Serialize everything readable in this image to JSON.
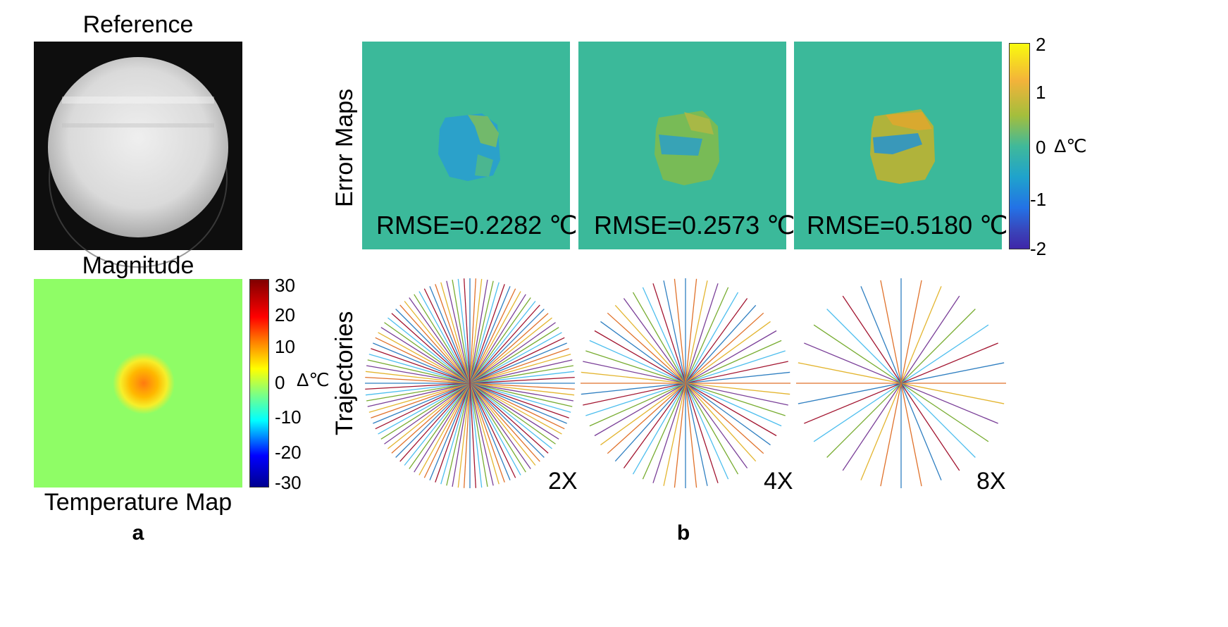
{
  "panel_a": {
    "reference_title": "Reference",
    "magnitude_label": "Magnitude",
    "temperature_label": "Temperature Map",
    "letter": "a",
    "colorbar": {
      "ticks": [
        "30",
        "20",
        "10",
        "0",
        "-10",
        "-20",
        "-30"
      ],
      "unit": "Δ℃"
    }
  },
  "panel_b": {
    "letter": "b",
    "error_maps_label": "Error Maps",
    "trajectories_label": "Trajectories",
    "error_maps": [
      {
        "rmse": "RMSE=0.2282 ℃"
      },
      {
        "rmse": "RMSE=0.2573 ℃"
      },
      {
        "rmse": "RMSE=0.5180 ℃"
      }
    ],
    "colorbar": {
      "ticks": [
        "2",
        "1",
        "0",
        "-1",
        "-2"
      ],
      "unit": "Δ℃"
    },
    "trajectories": [
      {
        "factor": "2X",
        "spokes": 56
      },
      {
        "factor": "4X",
        "spokes": 30
      },
      {
        "factor": "8X",
        "spokes": 16
      }
    ]
  },
  "colors": {
    "error_background": "#3bb99a",
    "temperature_background": "#8ffd66",
    "line_palette": [
      "#2f7fc1",
      "#e0712a",
      "#e3b52f",
      "#7a3f98",
      "#77ac30",
      "#4dbeee",
      "#a2142f"
    ]
  }
}
